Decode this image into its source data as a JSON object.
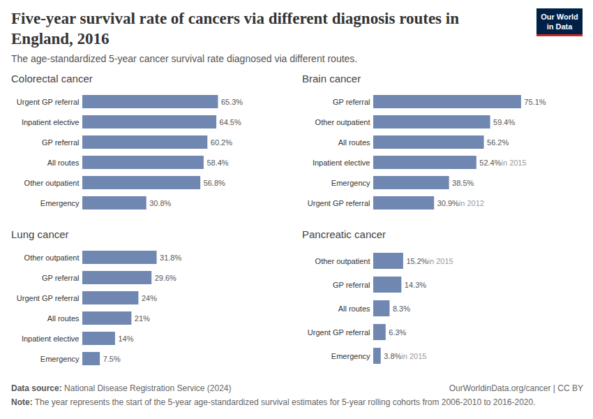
{
  "title": "Five-year survival rate of cancers via different diagnosis routes in England, 2016",
  "subtitle": "The age-standardized 5-year cancer survival rate diagnosed via different routes.",
  "logo": [
    "Our World",
    "in Data"
  ],
  "source_label": "Data source:",
  "source": "National Disease Registration Service (2024)",
  "url": "OurWorldinData.org/cancer | CC BY",
  "note_label": "Note:",
  "note": "The year represents the start of the 5-year age-standardized survival estimates for 5-year rolling cohorts from 2006-2010 to 2016-2020.",
  "chart_data": [
    {
      "type": "bar",
      "title": "Colorectal cancer",
      "orientation": "horizontal",
      "data_labels": true,
      "tick_labels": "y",
      "color": "#6f87b1",
      "categories": [
        "Urgent GP referral",
        "Inpatient elective",
        "GP referral",
        "All routes",
        "Other outpatient",
        "Emergency"
      ],
      "values": [
        65.3,
        64.5,
        60.2,
        58.4,
        56.8,
        30.8
      ],
      "value_labels": [
        "65.3%",
        "64.5%",
        "60.2%",
        "58.4%",
        "56.8%",
        "30.8%"
      ],
      "annotations": [
        null,
        null,
        null,
        null,
        null,
        null
      ],
      "xlim": [
        0,
        90
      ]
    },
    {
      "type": "bar",
      "title": "Brain cancer",
      "orientation": "horizontal",
      "data_labels": true,
      "tick_labels": "y",
      "color": "#6f87b1",
      "categories": [
        "GP referral",
        "Other outpatient",
        "All routes",
        "Inpatient elective",
        "Emergency",
        "Urgent GP referral"
      ],
      "values": [
        75.1,
        59.4,
        56.2,
        52.4,
        38.5,
        30.9
      ],
      "value_labels": [
        "75.1%",
        "59.4%",
        "56.2%",
        "52.4%",
        "38.5%",
        "30.9%"
      ],
      "annotations": [
        null,
        null,
        null,
        "in 2015",
        null,
        "in 2012"
      ],
      "xlim": [
        0,
        95
      ]
    },
    {
      "type": "bar",
      "title": "Lung cancer",
      "orientation": "horizontal",
      "data_labels": true,
      "tick_labels": "y",
      "color": "#6f87b1",
      "categories": [
        "Other outpatient",
        "GP referral",
        "Urgent GP referral",
        "All routes",
        "Inpatient elective",
        "Emergency"
      ],
      "values": [
        31.8,
        29.6,
        24,
        21,
        14,
        7.5
      ],
      "value_labels": [
        "31.8%",
        "29.6%",
        "24%",
        "21%",
        "14%",
        "7.5%"
      ],
      "annotations": [
        null,
        null,
        null,
        null,
        null,
        null
      ],
      "xlim": [
        0,
        80
      ]
    },
    {
      "type": "bar",
      "title": "Pancreatic cancer",
      "orientation": "horizontal",
      "data_labels": true,
      "tick_labels": "y",
      "color": "#6f87b1",
      "categories": [
        "Other outpatient",
        "GP referral",
        "All routes",
        "Urgent GP referral",
        "Emergency"
      ],
      "values": [
        15.2,
        14.3,
        8.3,
        6.3,
        3.8
      ],
      "value_labels": [
        "15.2%",
        "14.3%",
        "8.3%",
        "6.3%",
        "3.8%"
      ],
      "annotations": [
        "in 2015",
        null,
        null,
        null,
        "in 2015"
      ],
      "xlim": [
        0,
        95
      ]
    }
  ]
}
